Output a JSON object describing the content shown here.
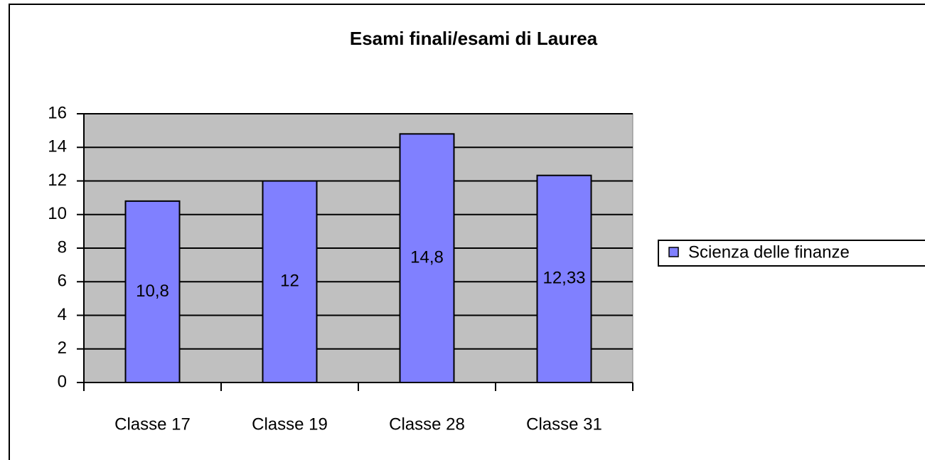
{
  "chart_data": {
    "type": "bar",
    "title": "Esami finali/esami di Laurea",
    "categories": [
      "Classe 17",
      "Classe 19",
      "Classe 28",
      "Classe 31"
    ],
    "series": [
      {
        "name": "Scienza delle finanze",
        "color": "#8080ff",
        "values": [
          10.8,
          12,
          14.8,
          12.33
        ],
        "value_labels": [
          "10,8",
          "12",
          "14,8",
          "12,33"
        ]
      }
    ],
    "ylim": [
      0,
      16
    ],
    "yticks": [
      0,
      2,
      4,
      6,
      8,
      10,
      12,
      14,
      16
    ],
    "grid": true,
    "plot_background": "#c0c0c0",
    "legend": "right"
  }
}
